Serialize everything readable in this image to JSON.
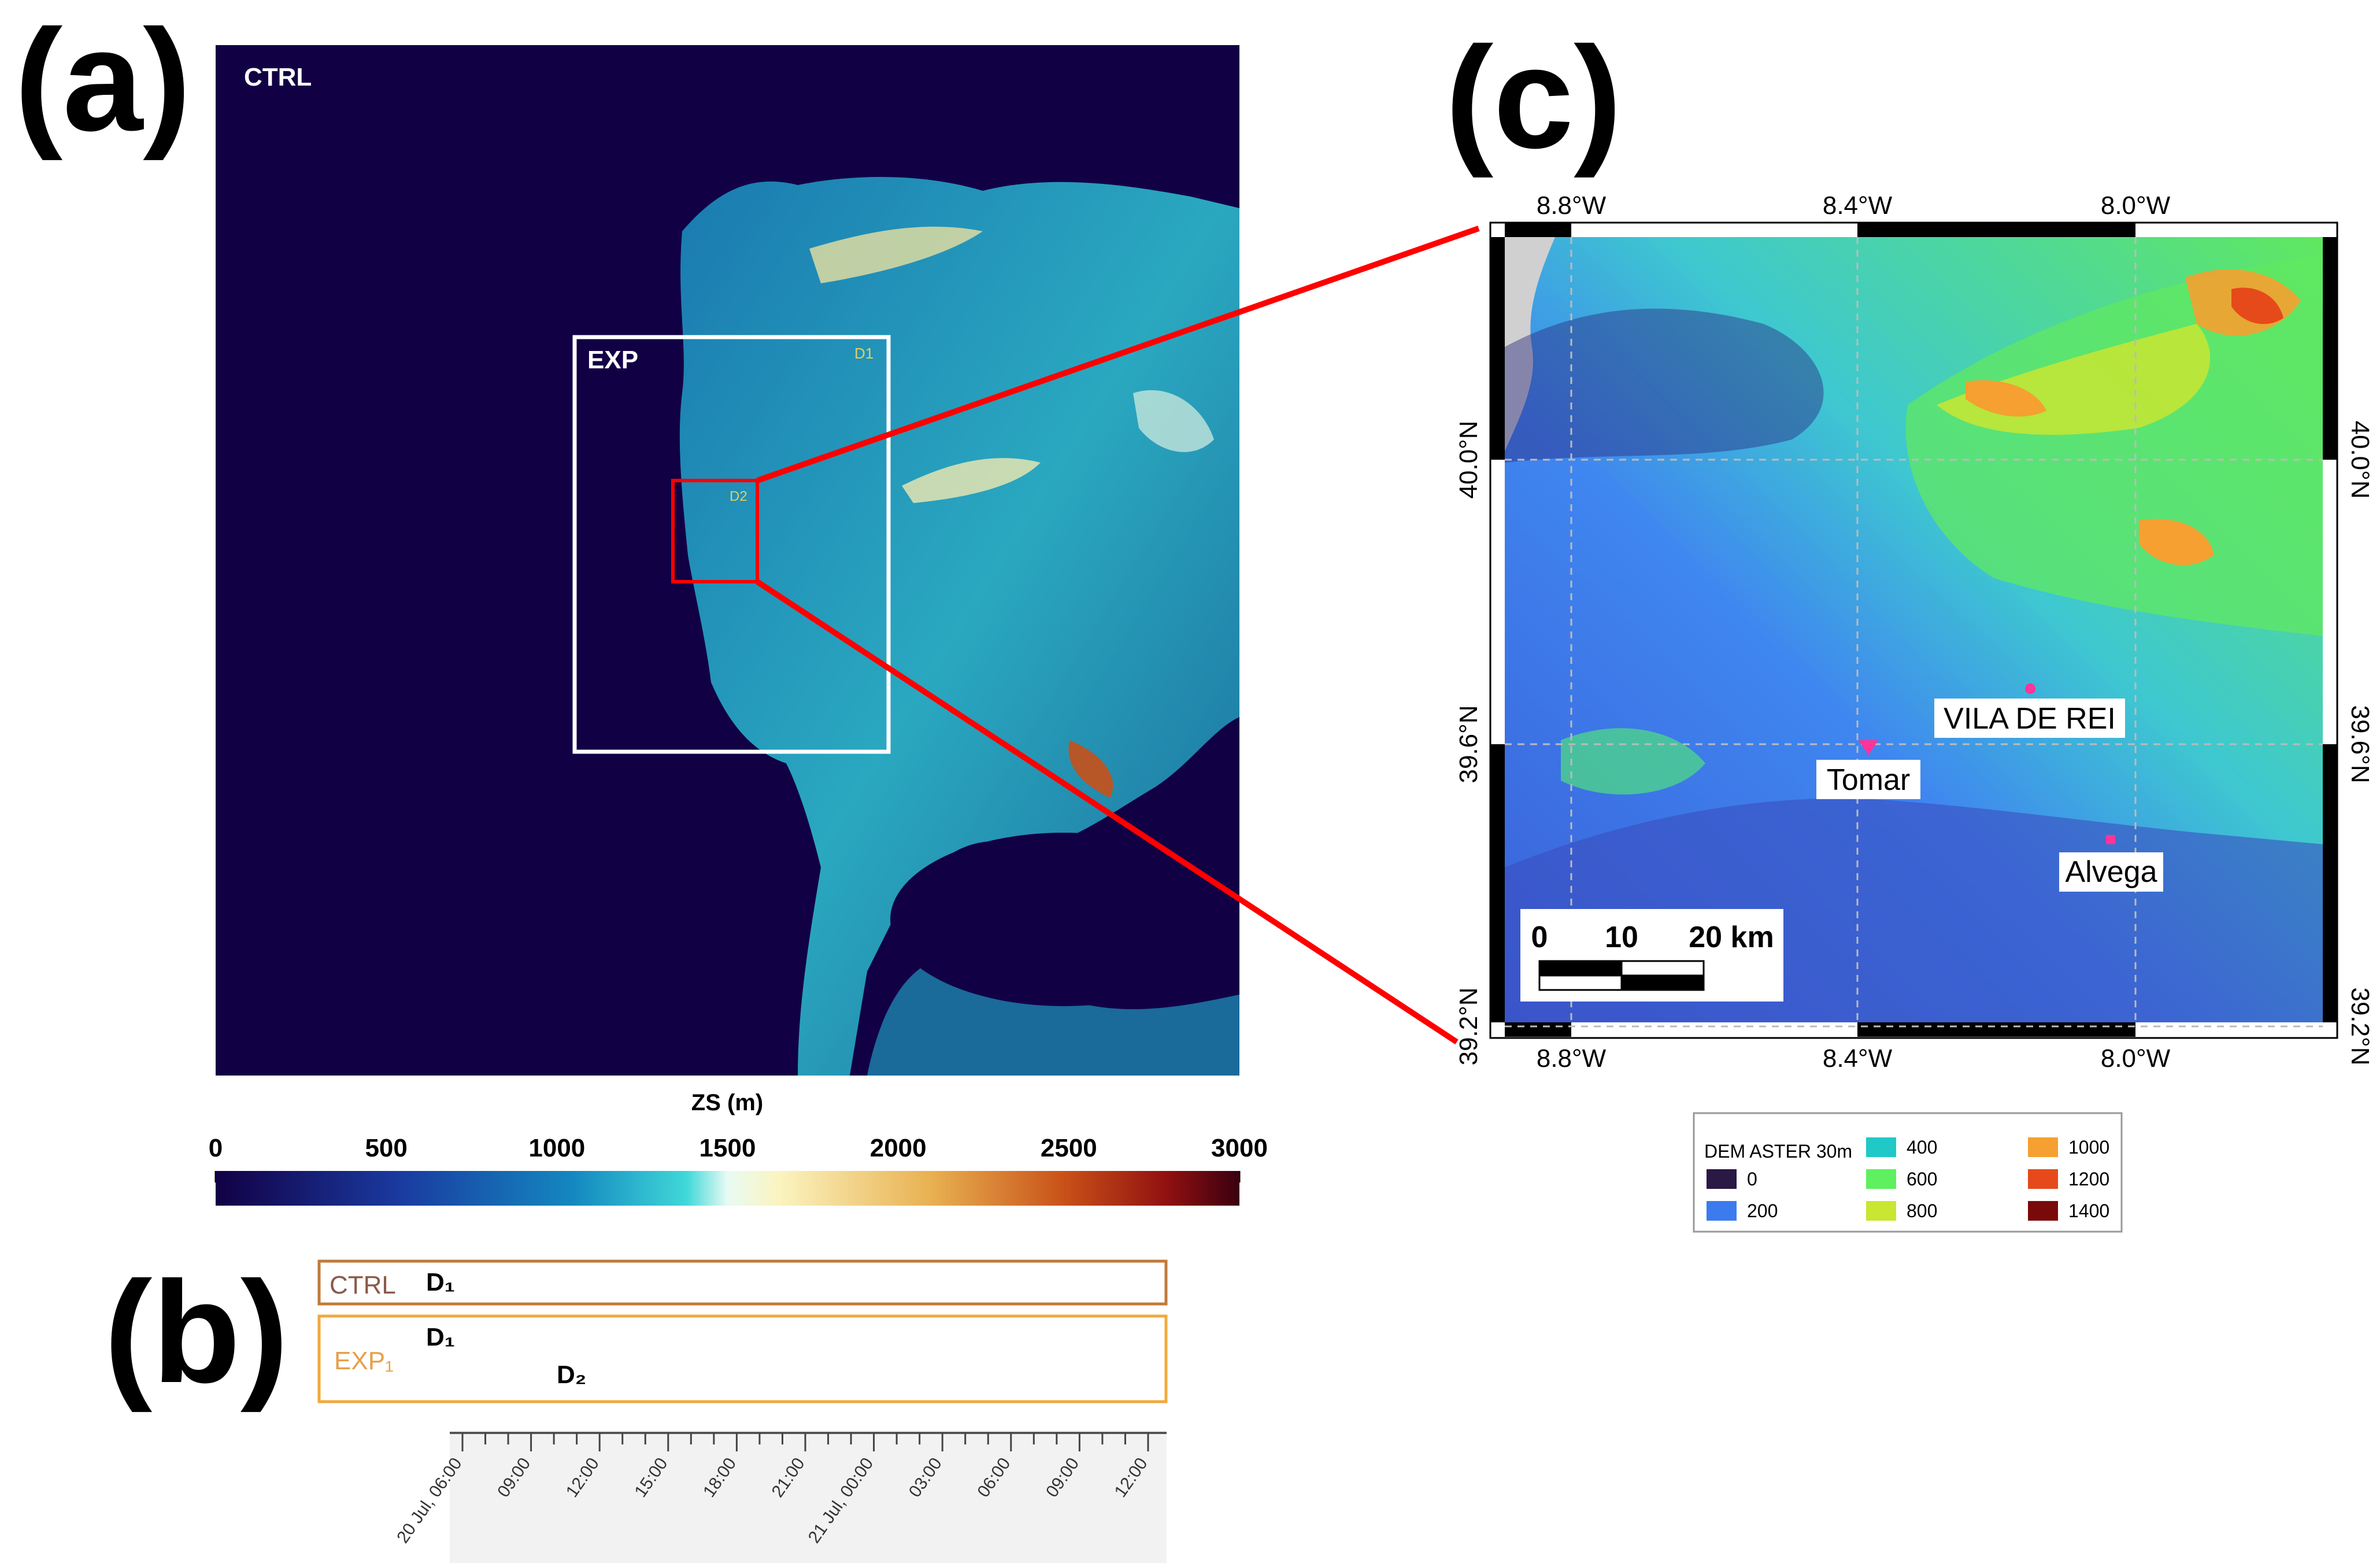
{
  "panel_a": {
    "letter": "(a)",
    "ctrl_label": "CTRL",
    "exp_label": "EXP",
    "d1_label": "D1",
    "d2_label": "D2",
    "colorbar": {
      "title": "ZS (m)",
      "ticks": [
        "0",
        "500",
        "1000",
        "1500",
        "2000",
        "2500",
        "3000"
      ],
      "range": [
        0,
        3000
      ]
    },
    "colors": {
      "ocean": "#120045",
      "exp_box": "#ffffff",
      "d2_box": "#ff0000"
    }
  },
  "panel_b": {
    "letter": "(b)",
    "ctrl_label": "CTRL",
    "exp1_label": "EXP₁",
    "d1_label": "D₁",
    "d2_label": "D₂",
    "time_ticks": [
      "20 Jul, 06:00",
      "09:00",
      "12:00",
      "15:00",
      "18:00",
      "21:00",
      "21 Jul, 00:00",
      "03:00",
      "06:00",
      "09:00",
      "12:00"
    ],
    "runs": [
      {
        "group": "CTRL",
        "domain": "D₁",
        "start": "20 Jul, 06:00",
        "end": "21 Jul, 12:00"
      },
      {
        "group": "EXP₁",
        "domain": "D₁",
        "start": "20 Jul, 06:00",
        "end": "21 Jul, 12:00"
      },
      {
        "group": "EXP₁",
        "domain": "D₂",
        "start": "20 Jul, 12:00",
        "end": "21 Jul, 12:00"
      }
    ],
    "colors": {
      "ctrl_border": "#c07a3a",
      "exp_border": "#f2a93b",
      "d1_bar": "#c57e3a",
      "d2_bar": "#f5cf6b",
      "ctrl_text": "#8a5a4a",
      "exp_text": "#e6a04a"
    }
  },
  "panel_c": {
    "letter": "(c)",
    "lon_labels": [
      "8.8°W",
      "8.4°W",
      "8.0°W"
    ],
    "lat_labels": [
      "40.0°N",
      "39.6°N",
      "39.2°N"
    ],
    "places": [
      {
        "name": "VILA DE REI",
        "color": "#ff3399"
      },
      {
        "name": "Tomar",
        "color": "#ff3399"
      },
      {
        "name": "Alvega",
        "color": "#ff3399"
      }
    ],
    "scalebar": {
      "labels": [
        "0",
        "10",
        "20 km"
      ]
    },
    "legend": {
      "title": "DEM ASTER 30m",
      "items": [
        {
          "label": "0",
          "color": "#2a1845"
        },
        {
          "label": "200",
          "color": "#3b7bef"
        },
        {
          "label": "400",
          "color": "#20c8c8"
        },
        {
          "label": "600",
          "color": "#5ef05e"
        },
        {
          "label": "800",
          "color": "#c8e632"
        },
        {
          "label": "1000",
          "color": "#f5a030"
        },
        {
          "label": "1200",
          "color": "#e64a1a"
        },
        {
          "label": "1400",
          "color": "#7a0a0a"
        }
      ]
    }
  }
}
